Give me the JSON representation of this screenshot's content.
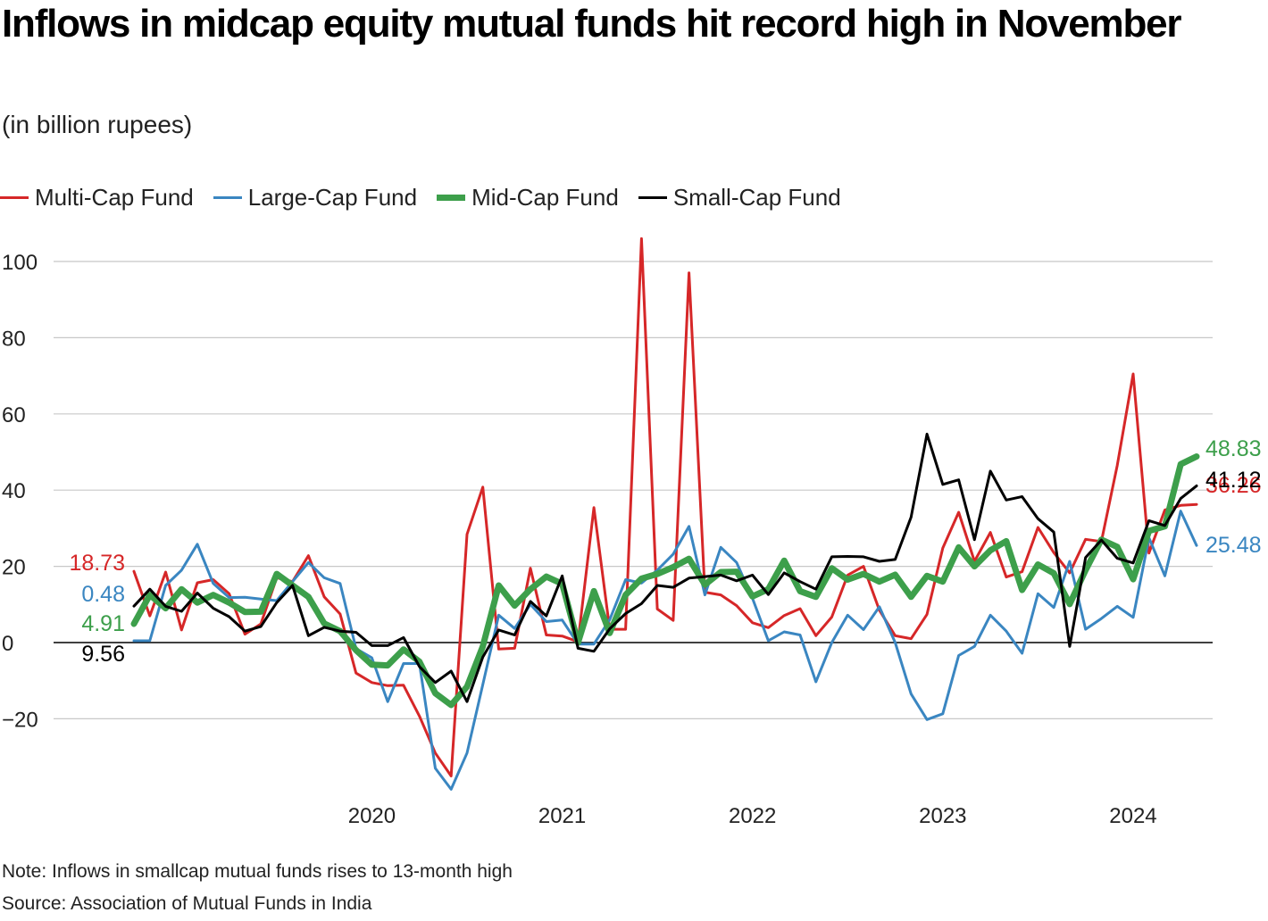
{
  "title": "Inflows in midcap equity mutual funds hit record high in November",
  "subtitle": "(in billion rupees)",
  "note": "Note: Inflows in smallcap mutual funds rises to 13-month high",
  "source": "Source: Association of Mutual Funds in India",
  "chart_data": {
    "type": "line",
    "x_start": "2019-04",
    "x_end": "2024-11",
    "frequency": "monthly",
    "xlabel": "",
    "ylabel": "",
    "ylim": [
      -40,
      105
    ],
    "yticks": [
      100,
      80,
      60,
      40,
      20,
      0,
      -20
    ],
    "yticklabels": [
      "100",
      "80",
      "60",
      "40",
      "20",
      "0",
      "−20"
    ],
    "xticks": [
      "2020",
      "2021",
      "2022",
      "2023",
      "2024"
    ],
    "grid": true,
    "legend": "top-left",
    "series": [
      {
        "name": "Multi-Cap Fund",
        "color": "#d62728",
        "width": 3,
        "start_label": "18.73",
        "end_label": "36.26",
        "values": [
          18.7,
          7,
          18.5,
          3.3,
          15.7,
          16.5,
          12.8,
          2.2,
          4.9,
          17,
          16,
          22.8,
          12,
          7.5,
          -8,
          -10.5,
          -11.3,
          -11.2,
          -19.3,
          -29,
          -35,
          28.4,
          40.8,
          -1.7,
          -1.5,
          19.5,
          2,
          1.7,
          0.2,
          35.4,
          3.5,
          3.5,
          106,
          8.8,
          5.8,
          97,
          13.2,
          12.5,
          9.7,
          5.2,
          3.9,
          7.1,
          8.9,
          1.8,
          6.7,
          17.7,
          20,
          8.5,
          1.8,
          1,
          7.4,
          24.8,
          34.2,
          21.3,
          28.9,
          17.2,
          18.6,
          30.2,
          23.6,
          18.3,
          27.1,
          26.5,
          46.5,
          70.5,
          23.5,
          34.8,
          36,
          36.26
        ]
      },
      {
        "name": "Large-Cap Fund",
        "color": "#3a86c1",
        "width": 3,
        "start_label": "0.48",
        "end_label": "25.48",
        "values": [
          0.48,
          0.5,
          15,
          19,
          25.8,
          15.5,
          11.8,
          11.9,
          11.4,
          11,
          16,
          21,
          17,
          15.5,
          -1.6,
          -4,
          -15.5,
          -5.5,
          -5.5,
          -33,
          -38.5,
          -29,
          -11,
          7.2,
          3.7,
          10,
          5.5,
          5.9,
          -0.4,
          -0.4,
          6,
          16.5,
          15.6,
          19,
          23.2,
          30.5,
          12.5,
          25,
          21,
          11.6,
          0.5,
          2.8,
          2,
          -10.3,
          0,
          7.2,
          3.4,
          9.4,
          0,
          -13.5,
          -20.2,
          -18.7,
          -3.4,
          -1,
          7.2,
          3,
          -2.8,
          12.8,
          9.2,
          21.3,
          3.5,
          6.3,
          9.5,
          6.6,
          27.5,
          17.5,
          34.5,
          25.48
        ]
      },
      {
        "name": "Mid-Cap Fund",
        "color": "#3d9f4b",
        "width": 7,
        "start_label": "4.91",
        "end_label": "48.83",
        "values": [
          4.91,
          12.5,
          9,
          14,
          10.5,
          12.5,
          10.5,
          8,
          8.1,
          18,
          15,
          12,
          5,
          3,
          -2,
          -5.8,
          -6,
          -1.8,
          -5,
          -13.3,
          -16.4,
          -11.6,
          -1,
          15,
          9.7,
          14,
          17.3,
          15.4,
          0,
          13.5,
          2.5,
          12.5,
          16.8,
          18,
          19.8,
          22,
          15.2,
          18.5,
          18.6,
          12.1,
          14,
          21.5,
          13.5,
          12,
          19.5,
          16.5,
          18,
          16,
          17.8,
          12,
          17.5,
          16,
          25,
          20,
          24.2,
          26.6,
          13.8,
          20.5,
          18.2,
          10.1,
          19,
          27,
          25.1,
          16.6,
          29.3,
          30.5,
          46.8,
          48.83
        ]
      },
      {
        "name": "Small-Cap Fund",
        "color": "#000000",
        "width": 3,
        "start_label": "9.56",
        "end_label": "41.12",
        "values": [
          9.56,
          14,
          9.5,
          8.2,
          13,
          9,
          6.8,
          3,
          4.2,
          10.5,
          15,
          1.8,
          4,
          3,
          2.7,
          -0.8,
          -0.8,
          1.3,
          -6.3,
          -10.5,
          -7.5,
          -15.5,
          -3.8,
          3.3,
          2,
          10.8,
          7,
          17.5,
          -1.5,
          -2.3,
          3.6,
          7.6,
          10.2,
          15,
          14.5,
          16.9,
          17.3,
          17.7,
          16.2,
          17.7,
          12.6,
          18.3,
          16,
          14,
          22.5,
          22.6,
          22.5,
          21.3,
          21.8,
          32.9,
          54.7,
          41.5,
          42.7,
          27,
          45,
          37.4,
          38.3,
          32.5,
          29,
          -1,
          22.3,
          26.9,
          22.1,
          20.9,
          32,
          30.7,
          37.8,
          41.12
        ]
      }
    ]
  }
}
